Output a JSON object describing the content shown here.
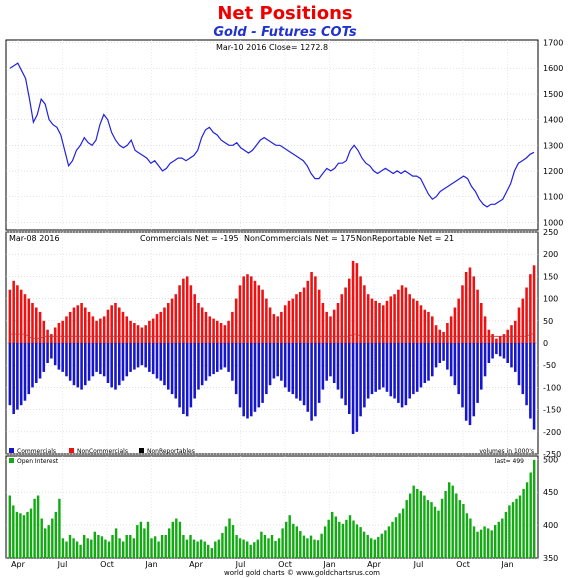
{
  "title": "Net Positions",
  "subtitle": "Gold - Futures COTs",
  "price_panel": {
    "label": "Mar-10 2016  Close= 1272.8"
  },
  "net_panel": {
    "date_label": "Mar-08 2016",
    "commercials_label": "Commercials Net = -195",
    "noncommercials_label": "NonCommercials Net = 175",
    "nonreportable_label": "NonReportable Net = 21",
    "units_label": "volumes in 1000's",
    "legend": [
      "Commercials",
      "NonCommercials",
      "NonReportables"
    ]
  },
  "oi_panel": {
    "legend": "Open Interest",
    "last_label": "last= 499"
  },
  "footer": "world gold charts © www.goldchartsrus.com",
  "colors": {
    "price": "#2222dd",
    "commercials": "#1515cc",
    "noncommercials": "#ee1111",
    "nonreportables": "#000000",
    "oi": "#11aa11",
    "title": "#ee0000",
    "subtitle": "#2233cc"
  },
  "chart_data": [
    {
      "type": "line",
      "name": "gold-price",
      "x_ticks": [
        "Apr",
        "Jul",
        "Oct",
        "Jan",
        "Apr",
        "Jul",
        "Oct",
        "Jan",
        "Apr",
        "Jul",
        "Oct",
        "Jan"
      ],
      "y_ticks": [
        1000,
        1100,
        1200,
        1300,
        1400,
        1500,
        1600,
        1700
      ],
      "ylim": [
        970,
        1710
      ],
      "values": [
        1600,
        1610,
        1620,
        1590,
        1560,
        1480,
        1390,
        1420,
        1480,
        1460,
        1400,
        1380,
        1370,
        1340,
        1280,
        1220,
        1240,
        1280,
        1300,
        1330,
        1310,
        1300,
        1320,
        1380,
        1420,
        1400,
        1350,
        1320,
        1300,
        1290,
        1300,
        1320,
        1280,
        1270,
        1260,
        1250,
        1230,
        1240,
        1220,
        1200,
        1210,
        1230,
        1240,
        1250,
        1250,
        1240,
        1250,
        1260,
        1280,
        1330,
        1360,
        1370,
        1350,
        1340,
        1320,
        1310,
        1300,
        1300,
        1310,
        1290,
        1280,
        1270,
        1280,
        1300,
        1320,
        1330,
        1320,
        1310,
        1300,
        1300,
        1290,
        1280,
        1270,
        1260,
        1250,
        1240,
        1220,
        1190,
        1170,
        1170,
        1190,
        1210,
        1200,
        1210,
        1230,
        1230,
        1240,
        1280,
        1300,
        1280,
        1250,
        1230,
        1220,
        1200,
        1190,
        1200,
        1210,
        1200,
        1190,
        1200,
        1190,
        1200,
        1190,
        1180,
        1180,
        1170,
        1140,
        1110,
        1090,
        1100,
        1120,
        1130,
        1140,
        1150,
        1160,
        1170,
        1180,
        1170,
        1140,
        1120,
        1090,
        1070,
        1060,
        1070,
        1070,
        1080,
        1090,
        1120,
        1150,
        1200,
        1230,
        1240,
        1250,
        1265,
        1272.8
      ]
    },
    {
      "type": "bar",
      "name": "net-positions",
      "x_ticks": [
        "Apr",
        "Jul",
        "Oct",
        "Jan",
        "Apr",
        "Jul",
        "Oct",
        "Jan",
        "Apr",
        "Jul",
        "Oct",
        "Jan"
      ],
      "y_ticks": [
        -250,
        -200,
        -150,
        -100,
        -50,
        0,
        50,
        100,
        150,
        200,
        250
      ],
      "ylim": [
        -250,
        250
      ],
      "series": [
        {
          "name": "NonCommercials",
          "values": [
            120,
            140,
            130,
            120,
            110,
            100,
            90,
            80,
            70,
            50,
            30,
            20,
            35,
            45,
            50,
            60,
            70,
            80,
            85,
            90,
            80,
            70,
            60,
            50,
            55,
            60,
            75,
            85,
            90,
            80,
            70,
            60,
            50,
            45,
            40,
            35,
            40,
            50,
            55,
            65,
            70,
            80,
            90,
            100,
            110,
            130,
            145,
            150,
            130,
            110,
            90,
            80,
            70,
            60,
            55,
            50,
            45,
            40,
            50,
            70,
            100,
            130,
            150,
            155,
            150,
            140,
            130,
            120,
            100,
            80,
            65,
            60,
            70,
            85,
            95,
            100,
            110,
            115,
            125,
            140,
            160,
            150,
            120,
            90,
            70,
            60,
            75,
            90,
            110,
            125,
            145,
            185,
            180,
            150,
            130,
            110,
            100,
            95,
            90,
            85,
            95,
            105,
            110,
            120,
            130,
            125,
            110,
            100,
            95,
            85,
            75,
            70,
            60,
            40,
            30,
            25,
            45,
            60,
            80,
            100,
            130,
            160,
            170,
            150,
            120,
            90,
            60,
            30,
            20,
            10,
            15,
            20,
            30,
            40,
            50,
            80,
            100,
            125,
            155,
            175
          ]
        },
        {
          "name": "Commercials",
          "values": [
            -140,
            -160,
            -150,
            -140,
            -130,
            -115,
            -100,
            -90,
            -80,
            -65,
            -45,
            -35,
            -50,
            -60,
            -65,
            -75,
            -85,
            -95,
            -100,
            -105,
            -95,
            -85,
            -75,
            -65,
            -70,
            -75,
            -90,
            -100,
            -105,
            -95,
            -85,
            -75,
            -65,
            -60,
            -55,
            -50,
            -55,
            -65,
            -70,
            -80,
            -85,
            -95,
            -105,
            -115,
            -125,
            -145,
            -160,
            -165,
            -145,
            -125,
            -105,
            -95,
            -85,
            -75,
            -70,
            -65,
            -60,
            -55,
            -65,
            -85,
            -115,
            -145,
            -165,
            -170,
            -165,
            -155,
            -145,
            -135,
            -115,
            -95,
            -80,
            -75,
            -85,
            -100,
            -110,
            -115,
            -125,
            -130,
            -140,
            -155,
            -175,
            -165,
            -135,
            -105,
            -85,
            -75,
            -90,
            -105,
            -125,
            -140,
            -160,
            -205,
            -200,
            -165,
            -145,
            -125,
            -115,
            -110,
            -105,
            -100,
            -110,
            -120,
            -125,
            -135,
            -145,
            -140,
            -125,
            -115,
            -110,
            -100,
            -90,
            -85,
            -75,
            -55,
            -45,
            -40,
            -60,
            -75,
            -95,
            -115,
            -145,
            -175,
            -185,
            -165,
            -135,
            -105,
            -75,
            -45,
            -35,
            -25,
            -30,
            -35,
            -45,
            -55,
            -65,
            -95,
            -115,
            -140,
            -170,
            -195
          ]
        },
        {
          "name": "NonReportables",
          "values": [
            20,
            20,
            20,
            20,
            20,
            15,
            10,
            10,
            10,
            15,
            15,
            15,
            15,
            15,
            15,
            15,
            15,
            15,
            15,
            15,
            15,
            15,
            15,
            15,
            15,
            15,
            15,
            15,
            15,
            15,
            15,
            15,
            15,
            15,
            15,
            15,
            15,
            15,
            15,
            15,
            15,
            15,
            15,
            15,
            15,
            15,
            15,
            15,
            15,
            15,
            15,
            15,
            15,
            15,
            15,
            15,
            15,
            15,
            15,
            15,
            15,
            15,
            15,
            15,
            15,
            15,
            15,
            15,
            15,
            15,
            15,
            15,
            15,
            15,
            15,
            15,
            15,
            15,
            15,
            15,
            15,
            15,
            15,
            15,
            15,
            15,
            15,
            15,
            15,
            15,
            15,
            20,
            20,
            15,
            15,
            15,
            15,
            15,
            15,
            15,
            15,
            15,
            15,
            15,
            15,
            15,
            15,
            15,
            15,
            15,
            15,
            15,
            15,
            15,
            15,
            15,
            15,
            15,
            15,
            15,
            15,
            15,
            15,
            15,
            15,
            15,
            15,
            15,
            15,
            15,
            15,
            15,
            15,
            15,
            15,
            15,
            15,
            15,
            20,
            21
          ]
        }
      ]
    },
    {
      "type": "bar",
      "name": "open-interest",
      "x_ticks": [
        "Apr",
        "Jul",
        "Oct",
        "Jan",
        "Apr",
        "Jul",
        "Oct",
        "Jan",
        "Apr",
        "Jul",
        "Oct",
        "Jan"
      ],
      "y_ticks": [
        350,
        400,
        450,
        500
      ],
      "ylim": [
        350,
        505
      ],
      "values": [
        445,
        430,
        420,
        418,
        415,
        420,
        425,
        440,
        445,
        410,
        395,
        400,
        410,
        420,
        440,
        380,
        375,
        385,
        380,
        375,
        370,
        385,
        380,
        378,
        390,
        385,
        383,
        378,
        375,
        385,
        395,
        380,
        375,
        385,
        385,
        380,
        400,
        405,
        395,
        405,
        380,
        383,
        375,
        385,
        385,
        395,
        405,
        410,
        405,
        385,
        378,
        385,
        378,
        375,
        378,
        375,
        370,
        365,
        375,
        378,
        388,
        398,
        410,
        400,
        385,
        380,
        378,
        375,
        370,
        374,
        378,
        390,
        385,
        380,
        385,
        376,
        380,
        395,
        405,
        415,
        402,
        398,
        391,
        384,
        380,
        384,
        378,
        377,
        387,
        398,
        408,
        420,
        413,
        405,
        402,
        408,
        415,
        407,
        401,
        397,
        390,
        385,
        380,
        378,
        382,
        387,
        392,
        398,
        405,
        412,
        418,
        425,
        438,
        448,
        460,
        455,
        452,
        445,
        438,
        435,
        428,
        422,
        440,
        452,
        465,
        460,
        448,
        438,
        432,
        418,
        410,
        398,
        390,
        393,
        398,
        395,
        392,
        400,
        405,
        410,
        420,
        430,
        435,
        440,
        445,
        455,
        465,
        480,
        499
      ]
    }
  ]
}
